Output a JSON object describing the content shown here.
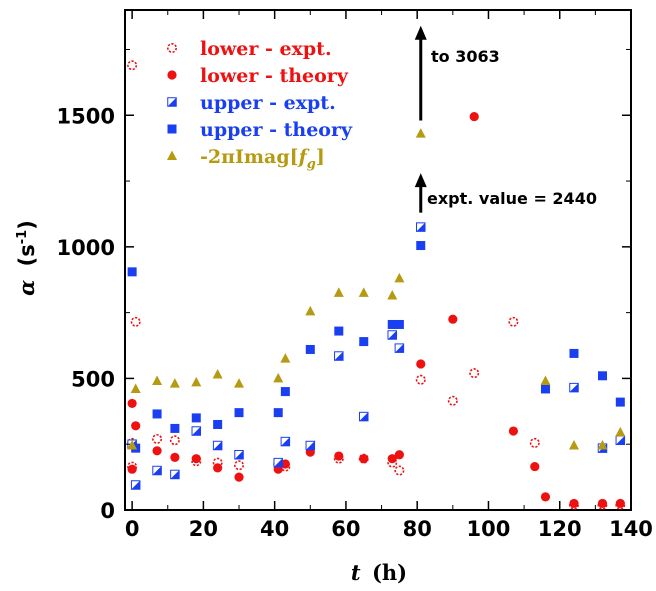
{
  "colors": {
    "red": "#ee1111",
    "blue": "#1a3ff0",
    "gold": "#b59a12",
    "black": "#000000"
  },
  "chart_data": {
    "type": "scatter",
    "title": "",
    "xlabel_var": "t",
    "xlabel_unit": "(h)",
    "ylabel_var": "α",
    "ylabel_unit_pre": "(s",
    "ylabel_unit_sup": "-1",
    "ylabel_unit_post": ")",
    "xlim": [
      -2,
      140
    ],
    "ylim": [
      0,
      1900
    ],
    "xticks": [
      0,
      20,
      40,
      60,
      80,
      100,
      120,
      140
    ],
    "yticks": [
      0,
      500,
      1000,
      1500
    ],
    "grid": false,
    "legend_position": "top-left",
    "series": [
      {
        "name": "lower - expt.",
        "label": "lower - expt.",
        "marker": "circle-open-dashed",
        "color": "#ee1111",
        "points": [
          [
            0,
            1690
          ],
          [
            1,
            715
          ],
          [
            0,
            255
          ],
          [
            0,
            165
          ],
          [
            7,
            270
          ],
          [
            12,
            265
          ],
          [
            18,
            185
          ],
          [
            24,
            180
          ],
          [
            30,
            170
          ],
          [
            41,
            175
          ],
          [
            43,
            165
          ],
          [
            58,
            195
          ],
          [
            65,
            195
          ],
          [
            73,
            180
          ],
          [
            75,
            150
          ],
          [
            81,
            495
          ],
          [
            90,
            415
          ],
          [
            96,
            520
          ],
          [
            107,
            715
          ],
          [
            113,
            255
          ],
          [
            124,
            20
          ],
          [
            132,
            20
          ],
          [
            137,
            20
          ]
        ]
      },
      {
        "name": "lower - theory",
        "label": "lower - theory",
        "marker": "circle-filled",
        "color": "#ee1111",
        "points": [
          [
            0,
            405
          ],
          [
            1,
            320
          ],
          [
            0,
            155
          ],
          [
            7,
            225
          ],
          [
            12,
            200
          ],
          [
            18,
            195
          ],
          [
            24,
            160
          ],
          [
            30,
            125
          ],
          [
            41,
            155
          ],
          [
            43,
            175
          ],
          [
            50,
            220
          ],
          [
            58,
            205
          ],
          [
            65,
            195
          ],
          [
            73,
            195
          ],
          [
            75,
            210
          ],
          [
            81,
            555
          ],
          [
            90,
            725
          ],
          [
            96,
            1495
          ],
          [
            107,
            300
          ],
          [
            113,
            165
          ],
          [
            116,
            50
          ],
          [
            124,
            25
          ],
          [
            132,
            25
          ],
          [
            137,
            25
          ]
        ]
      },
      {
        "name": "upper - expt.",
        "label": "upper - expt.",
        "marker": "square-half",
        "color": "#1a3ff0",
        "points": [
          [
            0,
            250
          ],
          [
            1,
            95
          ],
          [
            7,
            150
          ],
          [
            12,
            135
          ],
          [
            18,
            300
          ],
          [
            24,
            245
          ],
          [
            30,
            210
          ],
          [
            41,
            180
          ],
          [
            43,
            260
          ],
          [
            50,
            245
          ],
          [
            58,
            585
          ],
          [
            65,
            355
          ],
          [
            73,
            665
          ],
          [
            75,
            615
          ],
          [
            81,
            1075
          ],
          [
            124,
            465
          ],
          [
            132,
            235
          ],
          [
            137,
            265
          ]
        ]
      },
      {
        "name": "upper - theory",
        "label": "upper - theory",
        "marker": "square-filled",
        "color": "#1a3ff0",
        "points": [
          [
            0,
            905
          ],
          [
            1,
            235
          ],
          [
            7,
            365
          ],
          [
            12,
            310
          ],
          [
            18,
            350
          ],
          [
            24,
            325
          ],
          [
            30,
            370
          ],
          [
            41,
            370
          ],
          [
            43,
            450
          ],
          [
            50,
            610
          ],
          [
            58,
            680
          ],
          [
            65,
            640
          ],
          [
            73,
            705
          ],
          [
            75,
            705
          ],
          [
            81,
            1005
          ],
          [
            116,
            460
          ],
          [
            124,
            595
          ],
          [
            132,
            510
          ],
          [
            137,
            410
          ]
        ]
      },
      {
        "name": "-2πImag[f_g]",
        "label_main": "-2πImag[",
        "label_f": "f",
        "label_sub": "g",
        "label_close": "]",
        "marker": "triangle-filled",
        "color": "#b59a12",
        "points": [
          [
            0,
            245
          ],
          [
            1,
            460
          ],
          [
            7,
            490
          ],
          [
            12,
            480
          ],
          [
            18,
            485
          ],
          [
            24,
            515
          ],
          [
            30,
            480
          ],
          [
            41,
            500
          ],
          [
            43,
            575
          ],
          [
            50,
            755
          ],
          [
            58,
            825
          ],
          [
            65,
            825
          ],
          [
            73,
            815
          ],
          [
            75,
            880
          ],
          [
            81,
            1430
          ],
          [
            116,
            490
          ],
          [
            124,
            245
          ],
          [
            132,
            245
          ],
          [
            137,
            295
          ]
        ]
      }
    ],
    "annotations": [
      {
        "text": "to 3063",
        "arrow_x": 81,
        "arrow_from": 1480,
        "arrow_to": 1840
      },
      {
        "text": "expt. value = 2440",
        "arrow_x": 81,
        "arrow_from": 1130,
        "arrow_to": 1280
      }
    ]
  }
}
